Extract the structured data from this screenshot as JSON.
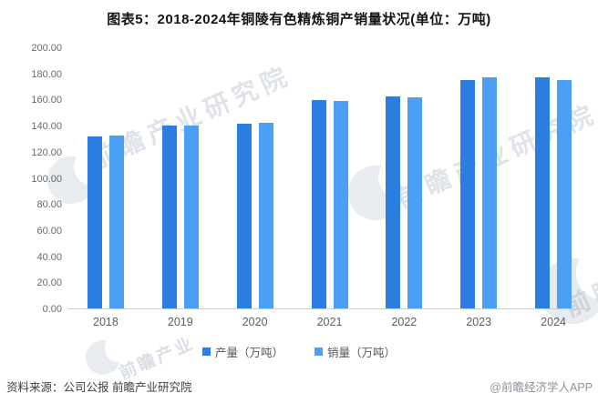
{
  "title": "图表5：2018-2024年铜陵有色精炼铜产销量状况(单位：万吨)",
  "chart_data": {
    "type": "bar",
    "title": "图表5：2018-2024年铜陵有色精炼铜产销量状况(单位：万吨)",
    "categories": [
      "2018",
      "2019",
      "2020",
      "2021",
      "2022",
      "2023",
      "2024"
    ],
    "series": [
      {
        "name": "产量（万吨）",
        "color": "#2b7de0",
        "values": [
          132.5,
          140.4,
          141.8,
          159.9,
          163.2,
          175.7,
          177.6
        ]
      },
      {
        "name": "销量（万吨）",
        "color": "#4ba0f6",
        "values": [
          132.9,
          140.6,
          142.9,
          159.2,
          162.3,
          177.6,
          175.5
        ]
      }
    ],
    "xlabel": "",
    "ylabel": "",
    "ylim": [
      0,
      200
    ],
    "ytick_step": 20,
    "ytick_labels": [
      "0.00",
      "20.00",
      "40.00",
      "60.00",
      "80.00",
      "100.00",
      "120.00",
      "140.00",
      "160.00",
      "180.00",
      "200.00"
    ],
    "grid": false,
    "legend_position": "bottom"
  },
  "legend": {
    "production_label": "产量（万吨）",
    "sales_label": "销量（万吨）"
  },
  "colors": {
    "production": "#2b7de0",
    "sales": "#4ba0f6",
    "axis_line": "#cccccc"
  },
  "footer": {
    "source": "资料来源：公司公报 前瞻产业研究院",
    "credit": "@前瞻经济学人APP"
  },
  "watermark": {
    "text": "前瞻产业研究院",
    "short_text": "前瞻产业"
  }
}
